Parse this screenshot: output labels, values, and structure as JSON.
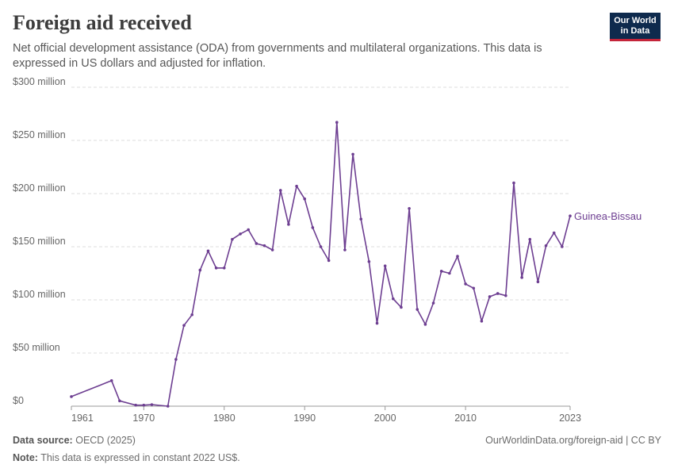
{
  "header": {
    "title": "Foreign aid received",
    "subtitle": "Net official development assistance (ODA) from governments and multilateral organizations. This data is expressed in US dollars and adjusted for inflation.",
    "logo_line1": "Our World",
    "logo_line2": "in Data"
  },
  "footer": {
    "source_label": "Data source:",
    "source_value": "OECD (2025)",
    "url_license": "OurWorldinData.org/foreign-aid | CC BY",
    "note_label": "Note:",
    "note_value": "This data is expressed in constant 2022 US$."
  },
  "colors": {
    "series": "#6d3e91",
    "grid": "#dddddd",
    "axis": "#999999"
  },
  "chart_data": {
    "type": "line",
    "title": "Foreign aid received",
    "xlabel": "",
    "ylabel": "",
    "xlim": [
      1961,
      2023
    ],
    "ylim": [
      0,
      300
    ],
    "y_unit": "million",
    "x_ticks": [
      1961,
      1970,
      1980,
      1990,
      2000,
      2010,
      2023
    ],
    "y_ticks": [
      {
        "value": 0,
        "label": "$0"
      },
      {
        "value": 50,
        "label": "$50 million"
      },
      {
        "value": 100,
        "label": "$100 million"
      },
      {
        "value": 150,
        "label": "$150 million"
      },
      {
        "value": 200,
        "label": "$200 million"
      },
      {
        "value": 250,
        "label": "$250 million"
      },
      {
        "value": 300,
        "label": "$300 million"
      }
    ],
    "grid": "horizontal dashed",
    "series": [
      {
        "name": "Guinea-Bissau",
        "x": [
          1961,
          1966,
          1967,
          1969,
          1970,
          1971,
          1973,
          1974,
          1975,
          1976,
          1977,
          1978,
          1979,
          1980,
          1981,
          1982,
          1983,
          1984,
          1985,
          1986,
          1987,
          1988,
          1989,
          1990,
          1991,
          1992,
          1993,
          1994,
          1995,
          1996,
          1997,
          1998,
          1999,
          2000,
          2001,
          2002,
          2003,
          2004,
          2005,
          2006,
          2007,
          2008,
          2009,
          2010,
          2011,
          2012,
          2013,
          2014,
          2015,
          2016,
          2017,
          2018,
          2019,
          2020,
          2021,
          2022,
          2023
        ],
        "values": [
          9,
          24,
          5,
          1,
          1,
          1.5,
          0,
          44,
          76,
          86,
          128,
          146,
          130,
          130,
          157,
          162,
          166,
          153,
          151,
          147,
          203,
          171,
          207,
          195,
          168,
          150,
          137,
          267,
          147,
          237,
          176,
          136,
          78,
          132,
          101,
          93,
          186,
          91,
          77,
          97,
          127,
          125,
          141,
          115,
          111,
          80,
          103,
          106,
          104,
          210,
          121,
          157,
          117,
          151,
          163,
          150,
          179
        ]
      }
    ]
  }
}
